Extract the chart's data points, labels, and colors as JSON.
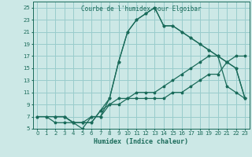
{
  "title": "Courbe de l'humidex pour Elgoibar",
  "xlabel": "Humidex (Indice chaleur)",
  "bg_color": "#cce8e6",
  "grid_color": "#99cccc",
  "line_color": "#1a6b5a",
  "xlim": [
    -0.5,
    23.5
  ],
  "ylim": [
    5,
    26
  ],
  "xticks": [
    0,
    1,
    2,
    3,
    4,
    5,
    6,
    7,
    8,
    9,
    10,
    11,
    12,
    13,
    14,
    15,
    16,
    17,
    18,
    19,
    20,
    21,
    22,
    23
  ],
  "yticks": [
    5,
    7,
    9,
    11,
    13,
    15,
    17,
    19,
    21,
    23,
    25
  ],
  "series": [
    {
      "x": [
        0,
        1,
        2,
        3,
        4,
        5,
        6,
        7,
        8,
        9,
        10,
        11,
        12,
        13,
        14,
        15,
        16,
        17,
        18,
        19,
        20,
        21,
        22,
        23
      ],
      "y": [
        7,
        7,
        6,
        6,
        6,
        5,
        7,
        7,
        9,
        9,
        10,
        10,
        10,
        10,
        10,
        11,
        11,
        12,
        13,
        14,
        14,
        16,
        17,
        17
      ]
    },
    {
      "x": [
        0,
        1,
        2,
        3,
        4,
        5,
        6,
        7,
        8,
        9,
        10,
        11,
        12,
        13,
        14,
        15,
        16,
        17,
        18,
        19,
        20,
        21,
        22,
        23
      ],
      "y": [
        7,
        7,
        7,
        7,
        6,
        6,
        6,
        8,
        9,
        10,
        10,
        11,
        11,
        11,
        12,
        13,
        14,
        15,
        16,
        17,
        17,
        12,
        11,
        10
      ]
    },
    {
      "x": [
        2,
        3,
        4,
        5,
        6,
        7,
        8,
        9,
        10,
        11,
        12,
        13,
        14,
        15,
        16,
        17,
        18,
        19,
        20,
        21,
        22,
        23
      ],
      "y": [
        7,
        7,
        6,
        6,
        7,
        7,
        10,
        16,
        21,
        23,
        24,
        25,
        22,
        22,
        21,
        20,
        19,
        18,
        17,
        16,
        15,
        10
      ]
    },
    {
      "x": [
        2,
        3,
        4,
        5,
        6,
        7,
        8,
        9,
        10,
        11,
        12,
        13,
        14,
        15,
        16,
        17,
        18,
        19,
        20,
        21,
        22,
        23
      ],
      "y": [
        7,
        7,
        6,
        6,
        6,
        8,
        10,
        16,
        21,
        23,
        24,
        25,
        22,
        22,
        21,
        20,
        19,
        18,
        17,
        16,
        15,
        10
      ]
    }
  ]
}
